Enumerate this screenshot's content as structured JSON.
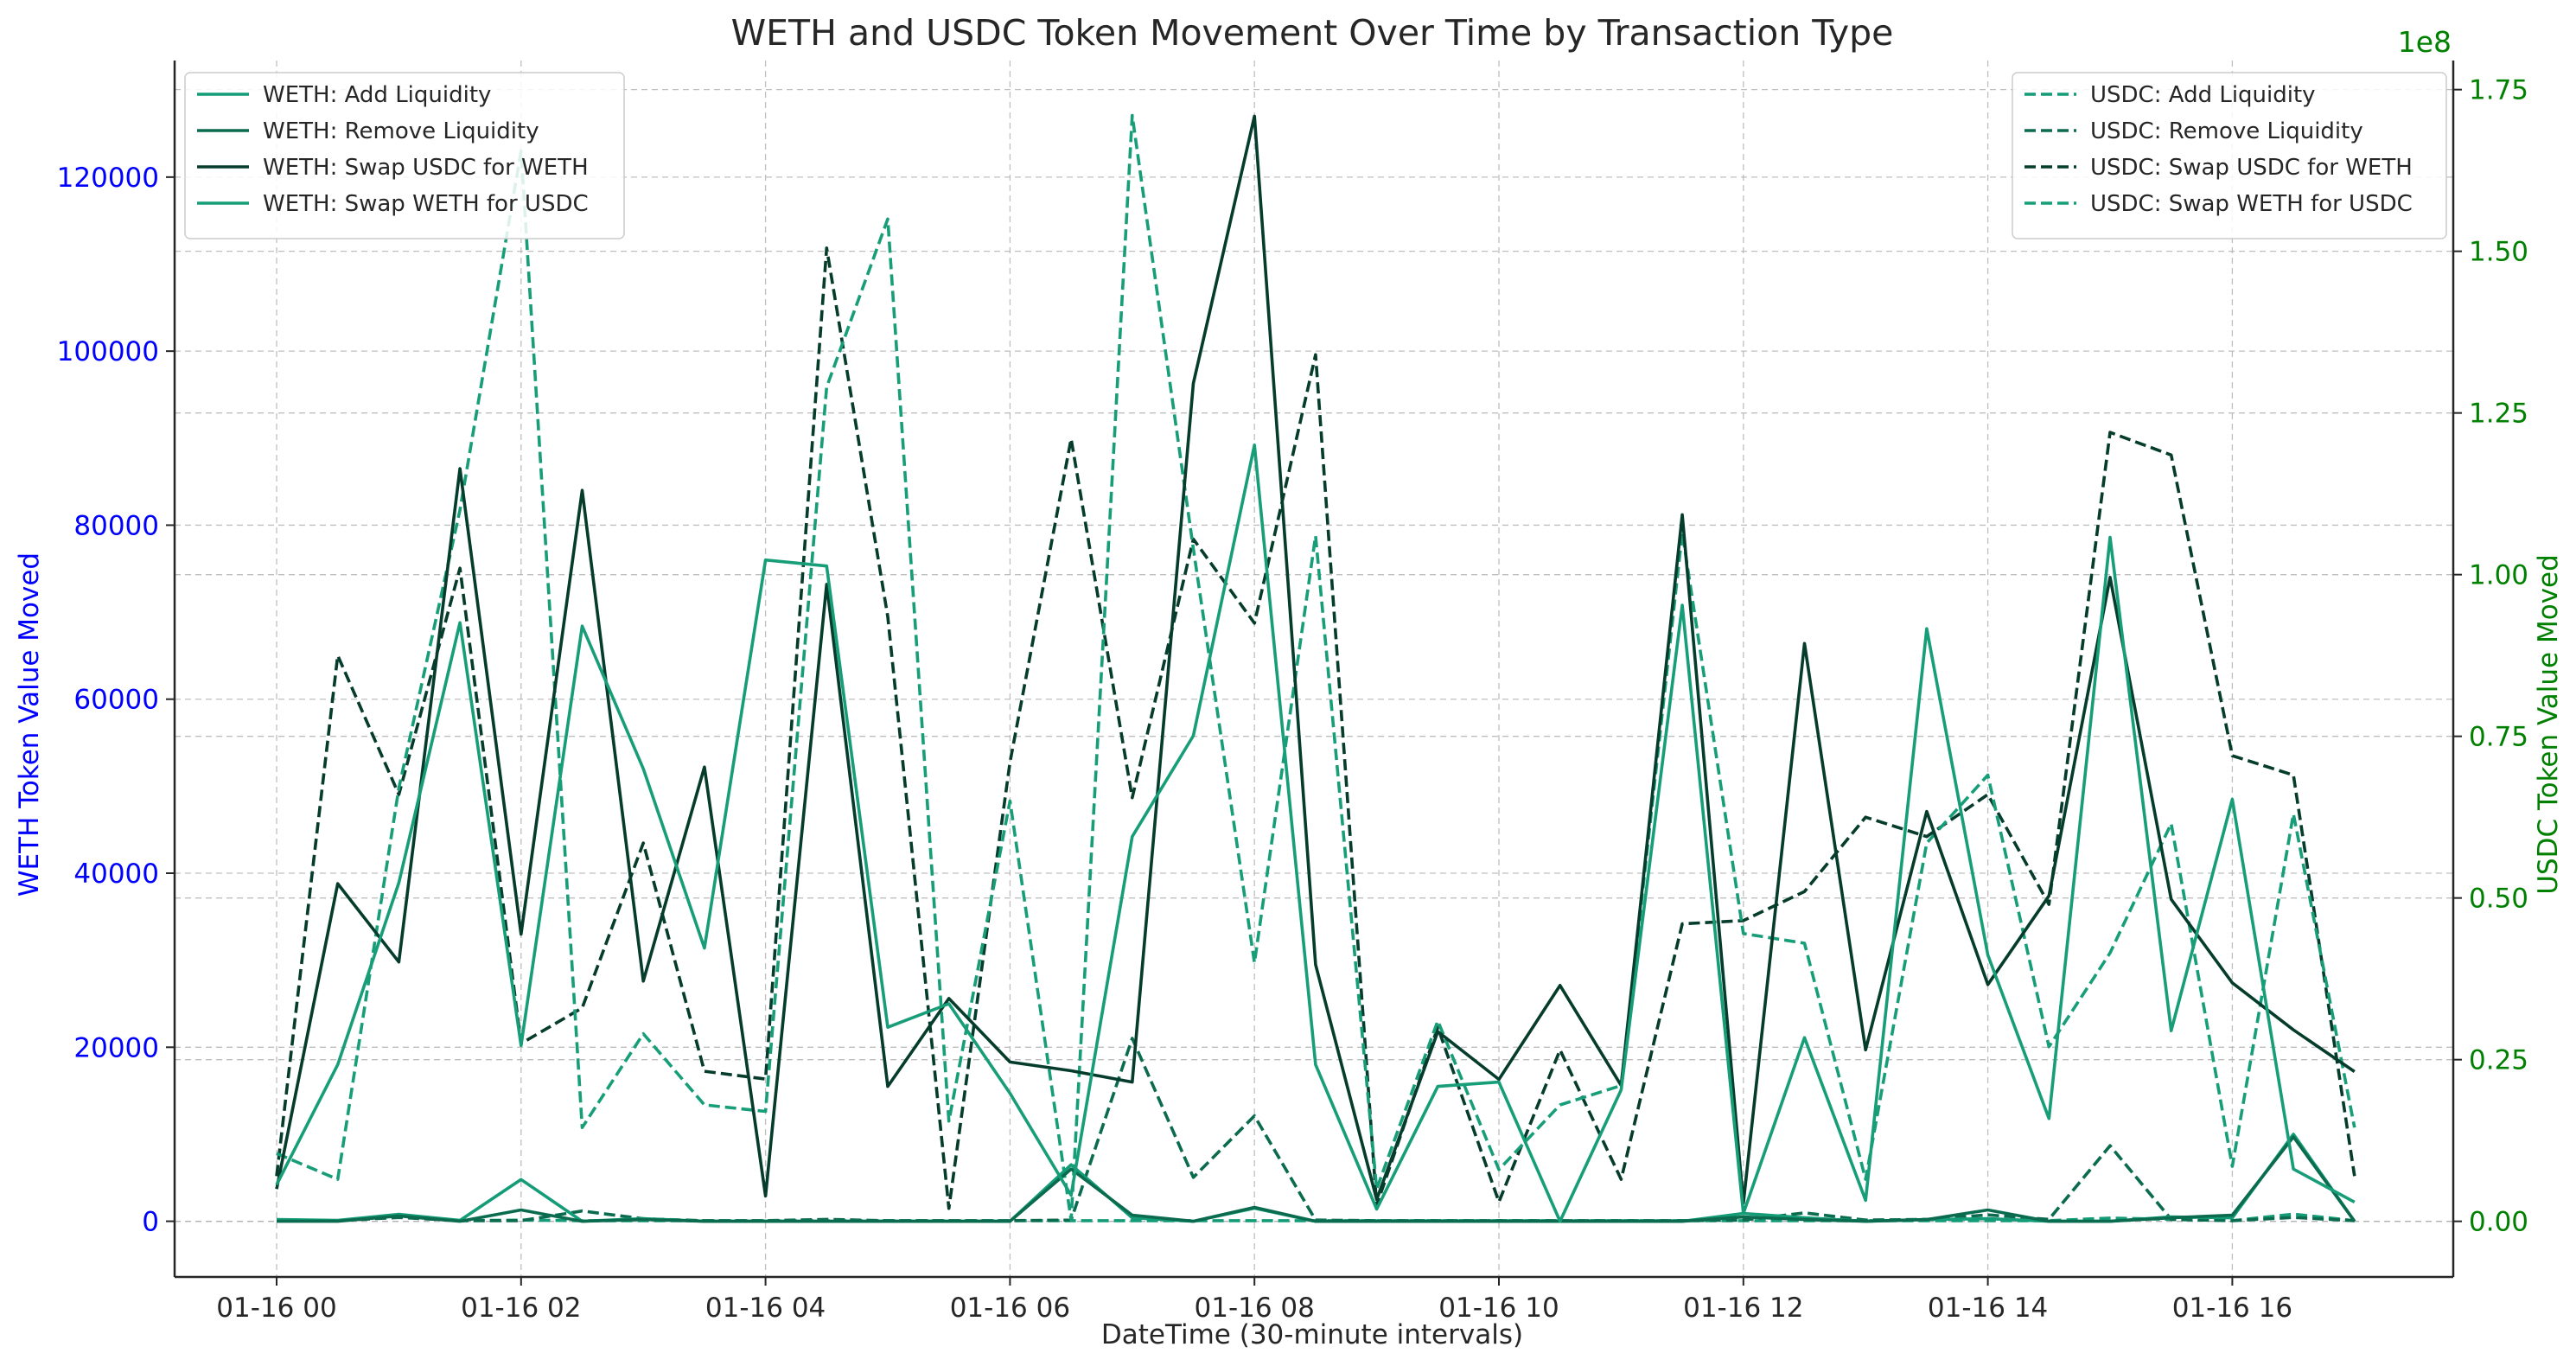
{
  "chart_data": {
    "type": "line",
    "title": "WETH and USDC Token Movement Over Time by Transaction Type",
    "xlabel": "DateTime (30-minute intervals)",
    "ylabel_left": "WETH Token Value Moved",
    "ylabel_right": "USDC Token Value Moved",
    "right_axis_offset_text": "1e8",
    "x_interval_minutes": 30,
    "x_ticks": [
      {
        "label": "01-16 00",
        "index": 0
      },
      {
        "label": "01-16 02",
        "index": 4
      },
      {
        "label": "01-16 04",
        "index": 8
      },
      {
        "label": "01-16 06",
        "index": 12
      },
      {
        "label": "01-16 08",
        "index": 16
      },
      {
        "label": "01-16 10",
        "index": 20
      },
      {
        "label": "01-16 12",
        "index": 24
      },
      {
        "label": "01-16 14",
        "index": 28
      },
      {
        "label": "01-16 16",
        "index": 32
      }
    ],
    "y_left": {
      "min": -6400,
      "max": 133400,
      "ticks": [
        0,
        20000,
        40000,
        60000,
        80000,
        100000,
        120000
      ],
      "tick_labels": [
        "0",
        "20000",
        "40000",
        "60000",
        "80000",
        "100000",
        "120000"
      ],
      "label_color": "#0000ff"
    },
    "y_right": {
      "min": -0.086,
      "max": 1.795,
      "ticks": [
        0,
        0.25,
        0.5,
        0.75,
        1.0,
        1.25,
        1.5,
        1.75
      ],
      "tick_labels": [
        "0.00",
        "0.25",
        "0.50",
        "0.75",
        "1.00",
        "1.25",
        "1.50",
        "1.75"
      ],
      "label_color": "#008000"
    },
    "grid": true,
    "legend_left_placement": "upper-left",
    "legend_right_placement": "upper-right",
    "series_weth": [
      {
        "name": "WETH: Add Liquidity",
        "color": "#139c77",
        "dash": false,
        "values": [
          200,
          100,
          800,
          100,
          4800,
          0,
          300,
          0,
          0,
          0,
          0,
          0,
          0,
          6500,
          400,
          0,
          1500,
          0,
          0,
          0,
          0,
          0,
          0,
          0,
          900,
          400,
          0,
          200,
          300,
          0,
          0,
          500,
          400,
          10000,
          0
        ]
      },
      {
        "name": "WETH: Remove Liquidity",
        "color": "#0b6b4e",
        "dash": false,
        "values": [
          0,
          0,
          600,
          0,
          1300,
          0,
          200,
          0,
          0,
          0,
          0,
          0,
          0,
          6000,
          700,
          0,
          1600,
          0,
          0,
          0,
          0,
          0,
          0,
          0,
          500,
          200,
          0,
          200,
          1300,
          0,
          0,
          400,
          700,
          9700,
          0
        ]
      },
      {
        "name": "WETH: Swap USDC for WETH",
        "color": "#053c2c",
        "dash": false,
        "values": [
          3700,
          38800,
          29800,
          86500,
          33000,
          84000,
          27600,
          52200,
          2900,
          73200,
          15500,
          25600,
          18300,
          17300,
          16000,
          96300,
          127000,
          29500,
          2500,
          21800,
          16300,
          27100,
          15600,
          81200,
          2100,
          66400,
          19700,
          47100,
          27200,
          37400,
          74000,
          37000,
          27400,
          22000,
          17200
        ]
      },
      {
        "name": "WETH: Swap WETH for USDC",
        "color": "#179e79",
        "dash": false,
        "values": [
          4200,
          18000,
          38900,
          68800,
          20200,
          68400,
          52000,
          31400,
          76000,
          75300,
          22300,
          25000,
          14700,
          3000,
          44200,
          55800,
          89200,
          18000,
          1400,
          15500,
          16000,
          0,
          15100,
          70800,
          900,
          21100,
          2400,
          68100,
          30600,
          11800,
          78600,
          21900,
          48500,
          6000,
          2200
        ]
      }
    ],
    "series_usdc": [
      {
        "name": "USDC: Add Liquidity",
        "color": "#139c77",
        "dash": true,
        "values": [
          0.002,
          0.001,
          0.008,
          0.001,
          0.002,
          0.001,
          0.001,
          0.001,
          0.001,
          0.001,
          0.001,
          0.001,
          0.001,
          0.001,
          0.001,
          0.001,
          0.001,
          0.001,
          0.001,
          0.001,
          0.001,
          0.001,
          0.001,
          0.001,
          0.001,
          0.001,
          0.001,
          0.001,
          0.001,
          0.001,
          0.005,
          0.003,
          0.001,
          0.011,
          0.001
        ]
      },
      {
        "name": "USDC: Remove Liquidity",
        "color": "#0b6b4e",
        "dash": true,
        "values": [
          0.001,
          0.001,
          0.006,
          0.001,
          0.001,
          0.016,
          0.004,
          0.001,
          0.001,
          0.003,
          0.001,
          0.001,
          0.001,
          0.002,
          0.283,
          0.068,
          0.163,
          0.002,
          0.001,
          0.001,
          0.001,
          0.001,
          0.001,
          0.001,
          0.002,
          0.013,
          0.002,
          0.003,
          0.01,
          0.003,
          0.117,
          0.003,
          0.001,
          0.006,
          0.001
        ]
      },
      {
        "name": "USDC: Swap USDC for WETH",
        "color": "#053c2c",
        "dash": true,
        "values": [
          0.07,
          0.875,
          0.66,
          1.01,
          0.275,
          0.33,
          0.585,
          0.232,
          0.22,
          1.505,
          0.935,
          0.02,
          0.71,
          1.21,
          0.655,
          1.055,
          0.925,
          1.34,
          0.025,
          0.3,
          0.03,
          0.265,
          0.065,
          0.46,
          0.465,
          0.51,
          0.625,
          0.595,
          0.66,
          0.49,
          1.22,
          1.185,
          0.72,
          0.69,
          0.07
        ]
      },
      {
        "name": "USDC: Swap WETH for USDC",
        "color": "#179e79",
        "dash": true,
        "values": [
          0.105,
          0.065,
          0.67,
          1.1,
          1.655,
          0.145,
          0.29,
          0.18,
          0.17,
          1.29,
          1.55,
          0.155,
          0.65,
          0.002,
          1.71,
          1.04,
          0.4,
          1.06,
          0.05,
          0.31,
          0.08,
          0.18,
          0.21,
          1.065,
          0.445,
          0.43,
          0.065,
          0.585,
          0.69,
          0.27,
          0.415,
          0.615,
          0.085,
          0.63,
          0.145
        ]
      }
    ]
  }
}
